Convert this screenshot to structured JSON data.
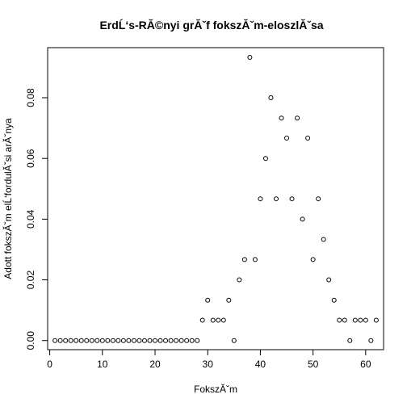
{
  "chart_data": {
    "type": "scatter",
    "title": "ErdĹ‘s-RĂ©nyi grĂˇf fokszĂˇm-eloszlĂˇsa",
    "xlabel": "FokszĂˇm",
    "ylabel": "Adott fokszĂˇm elĹ‘fordulĂˇsi arĂˇnya",
    "xlim": [
      -0.4,
      63.4
    ],
    "ylim": [
      -0.003,
      0.0965
    ],
    "x_ticks": [
      0,
      10,
      20,
      30,
      40,
      50,
      60
    ],
    "y_ticks": [
      0.0,
      0.02,
      0.04,
      0.06,
      0.08
    ],
    "y_tick_labels": [
      "0.00",
      "0.02",
      "0.04",
      "0.06",
      "0.08"
    ],
    "grid": false,
    "x": [
      1,
      2,
      3,
      4,
      5,
      6,
      7,
      8,
      9,
      10,
      11,
      12,
      13,
      14,
      15,
      16,
      17,
      18,
      19,
      20,
      21,
      22,
      23,
      24,
      25,
      26,
      27,
      28,
      29,
      30,
      31,
      32,
      33,
      34,
      35,
      36,
      37,
      38,
      39,
      40,
      41,
      42,
      43,
      44,
      45,
      46,
      47,
      48,
      49,
      50,
      51,
      52,
      53,
      54,
      55,
      56,
      57,
      58,
      59,
      60,
      61,
      62
    ],
    "y": [
      0,
      0,
      0,
      0,
      0,
      0,
      0,
      0,
      0,
      0,
      0,
      0,
      0,
      0,
      0,
      0,
      0,
      0,
      0,
      0,
      0,
      0,
      0,
      0,
      0,
      0,
      0,
      0,
      0.0067,
      0.0133,
      0.0067,
      0.0067,
      0.0067,
      0.0133,
      0,
      0.02,
      0.0267,
      0.0933,
      0.0267,
      0.0467,
      0.06,
      0.08,
      0.0467,
      0.0733,
      0.0667,
      0.0467,
      0.0733,
      0.04,
      0.0667,
      0.0267,
      0.0467,
      0.0333,
      0.02,
      0.0133,
      0.0067,
      0.0067,
      0,
      0.0067,
      0.0067,
      0.0067,
      0,
      0.0067
    ]
  }
}
